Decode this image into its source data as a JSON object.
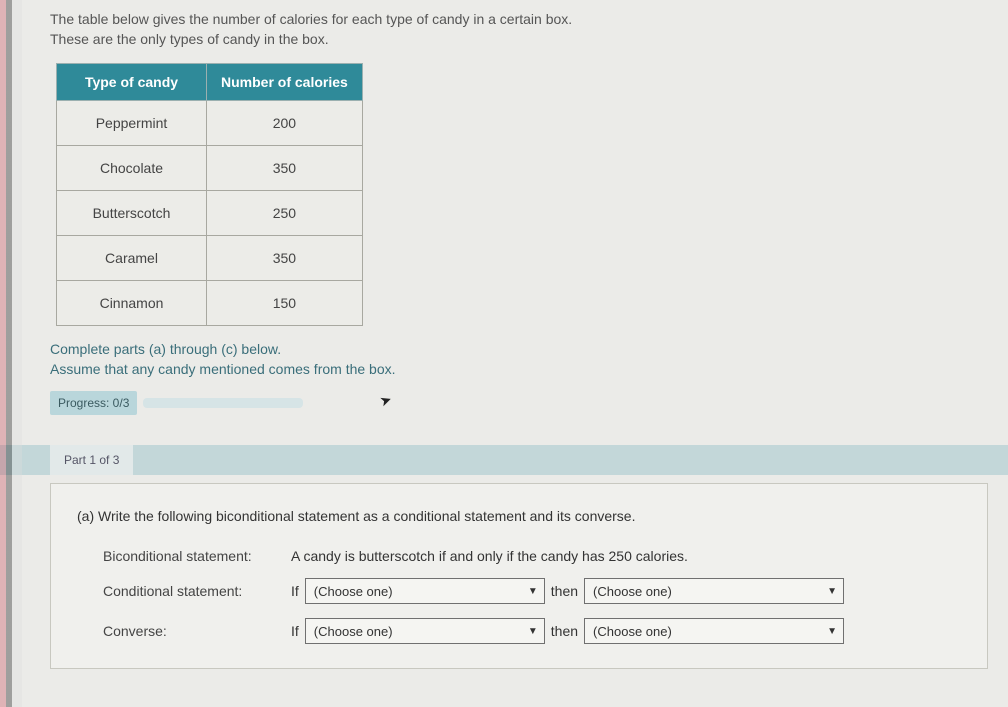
{
  "intro": {
    "line1": "The table below gives the number of calories for each type of candy in a certain box.",
    "line2": "These are the only types of candy in the box."
  },
  "table": {
    "header_bg": "#2f8a99",
    "border_color": "#a8a8a0",
    "columns": [
      "Type of candy",
      "Number of calories"
    ],
    "rows": [
      [
        "Peppermint",
        "200"
      ],
      [
        "Chocolate",
        "350"
      ],
      [
        "Butterscotch",
        "250"
      ],
      [
        "Caramel",
        "350"
      ],
      [
        "Cinnamon",
        "150"
      ]
    ]
  },
  "instructions": {
    "line1": "Complete parts (a) through (c) below.",
    "line2": "Assume that any candy mentioned comes from the box."
  },
  "progress": {
    "label": "Progress: 0/3"
  },
  "part": {
    "tab": "Part 1 of 3"
  },
  "question": {
    "prompt": "(a) Write the following biconditional statement as a conditional statement and its converse.",
    "biconditional_label": "Biconditional statement:",
    "biconditional_text": "A candy is butterscotch if and only if the candy has 250 calories.",
    "conditional_label": "Conditional statement:",
    "converse_label": "Converse:",
    "if_text": "If",
    "then_text": "then",
    "choose_placeholder": "(Choose one)"
  }
}
